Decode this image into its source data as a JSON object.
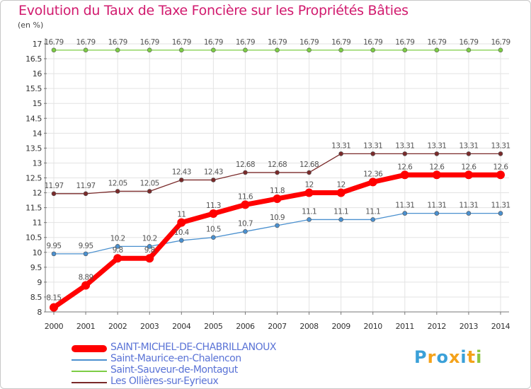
{
  "title": "Evolution du Taux de Taxe Foncière sur les Propriétés Bâties",
  "unit_label": "(en %)",
  "logo": {
    "text": "Proxiti",
    "colors": [
      "#3aa0d8",
      "#f4a21a",
      "#3aa0d8",
      "#f4a21a",
      "#3aa0d8",
      "#f4a21a",
      "#8cc63f"
    ]
  },
  "chart_data": {
    "type": "line",
    "title": "Evolution du Taux de Taxe Foncière sur les Propriétés Bâties",
    "ylabel": "(en %)",
    "xlabel": "",
    "x": [
      "2000",
      "2001",
      "2002",
      "2003",
      "2004",
      "2005",
      "2006",
      "2007",
      "2008",
      "2009",
      "2010",
      "2011",
      "2012",
      "2013",
      "2014"
    ],
    "ylim": [
      8,
      17
    ],
    "yticks": [
      "8",
      "8.5",
      "9",
      "9.5",
      "10",
      "10.5",
      "11",
      "11.5",
      "12",
      "12.5",
      "13",
      "13.5",
      "14",
      "14.5",
      "15",
      "15.5",
      "16",
      "16.5",
      "17"
    ],
    "grid": true,
    "series": [
      {
        "name": "SAINT-MICHEL-DE-CHABRILLANOUX",
        "color": "#ff0000",
        "values": [
          8.15,
          8.89,
          9.8,
          9.8,
          11,
          11.3,
          11.6,
          11.8,
          12,
          12,
          12.36,
          12.6,
          12.6,
          12.6,
          12.6
        ],
        "labels": [
          "8.15",
          "8.89",
          "9.8",
          "9.8",
          "11",
          "11.3",
          "11.6",
          "11.8",
          "12",
          "12",
          "12.36",
          "12.6",
          "12.6",
          "12.6",
          "12.6"
        ]
      },
      {
        "name": "Saint-Maurice-en-Chalencon",
        "color": "#4a90cf",
        "values": [
          9.95,
          9.95,
          10.2,
          10.2,
          10.4,
          10.5,
          10.7,
          10.9,
          11.1,
          11.1,
          11.1,
          11.31,
          11.31,
          11.31,
          11.31
        ],
        "labels": [
          "9.95",
          "9.95",
          "10.2",
          "10.2",
          "10.4",
          "10.5",
          "10.7",
          "10.9",
          "11.1",
          "11.1",
          "11.1",
          "11.31",
          "11.31",
          "11.31",
          "11.31"
        ]
      },
      {
        "name": "Saint-Sauveur-de-Montagut",
        "color": "#7dcd45",
        "values": [
          16.79,
          16.79,
          16.79,
          16.79,
          16.79,
          16.79,
          16.79,
          16.79,
          16.79,
          16.79,
          16.79,
          16.79,
          16.79,
          16.79,
          16.79
        ],
        "labels": [
          "16.79",
          "16.79",
          "16.79",
          "16.79",
          "16.79",
          "16.79",
          "16.79",
          "16.79",
          "16.79",
          "16.79",
          "16.79",
          "16.79",
          "16.79",
          "16.79",
          "16.79"
        ]
      },
      {
        "name": "Les Ollières-sur-Eyrieux",
        "color": "#7a2a2a",
        "values": [
          11.97,
          11.97,
          12.05,
          12.05,
          12.43,
          12.43,
          12.68,
          12.68,
          12.68,
          13.31,
          13.31,
          13.31,
          13.31,
          13.31,
          13.31
        ],
        "labels": [
          "11.97",
          "11.97",
          "12.05",
          "12.05",
          "12.43",
          "12.43",
          "12.68",
          "12.68",
          "12.68",
          "13.31",
          "13.31",
          "13.31",
          "13.31",
          "13.31",
          "13.31"
        ]
      }
    ]
  }
}
